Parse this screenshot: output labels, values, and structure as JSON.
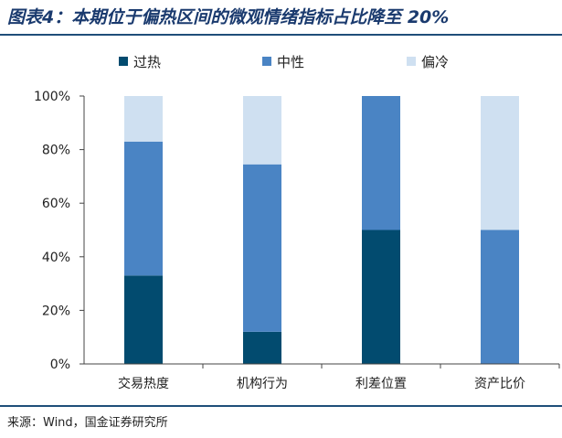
{
  "title": "图表4：本期位于偏热区间的微观情绪指标占比降至 20%",
  "source": "来源：Wind，国金证券研究所",
  "chart_data": {
    "type": "bar",
    "stacked": true,
    "categories": [
      "交易热度",
      "机构行为",
      "利差位置",
      "资产比价"
    ],
    "series": [
      {
        "name": "过热",
        "color": "#024b6f",
        "values": [
          33,
          12,
          50,
          0
        ]
      },
      {
        "name": "中性",
        "color": "#4a84c4",
        "values": [
          50,
          62.5,
          50,
          50
        ]
      },
      {
        "name": "偏冷",
        "color": "#cfe0f1",
        "values": [
          17,
          25.5,
          0,
          50
        ]
      }
    ],
    "yticks": [
      "0%",
      "20%",
      "40%",
      "60%",
      "80%",
      "100%"
    ],
    "ylim": [
      0,
      100
    ],
    "legend_position": "top"
  }
}
